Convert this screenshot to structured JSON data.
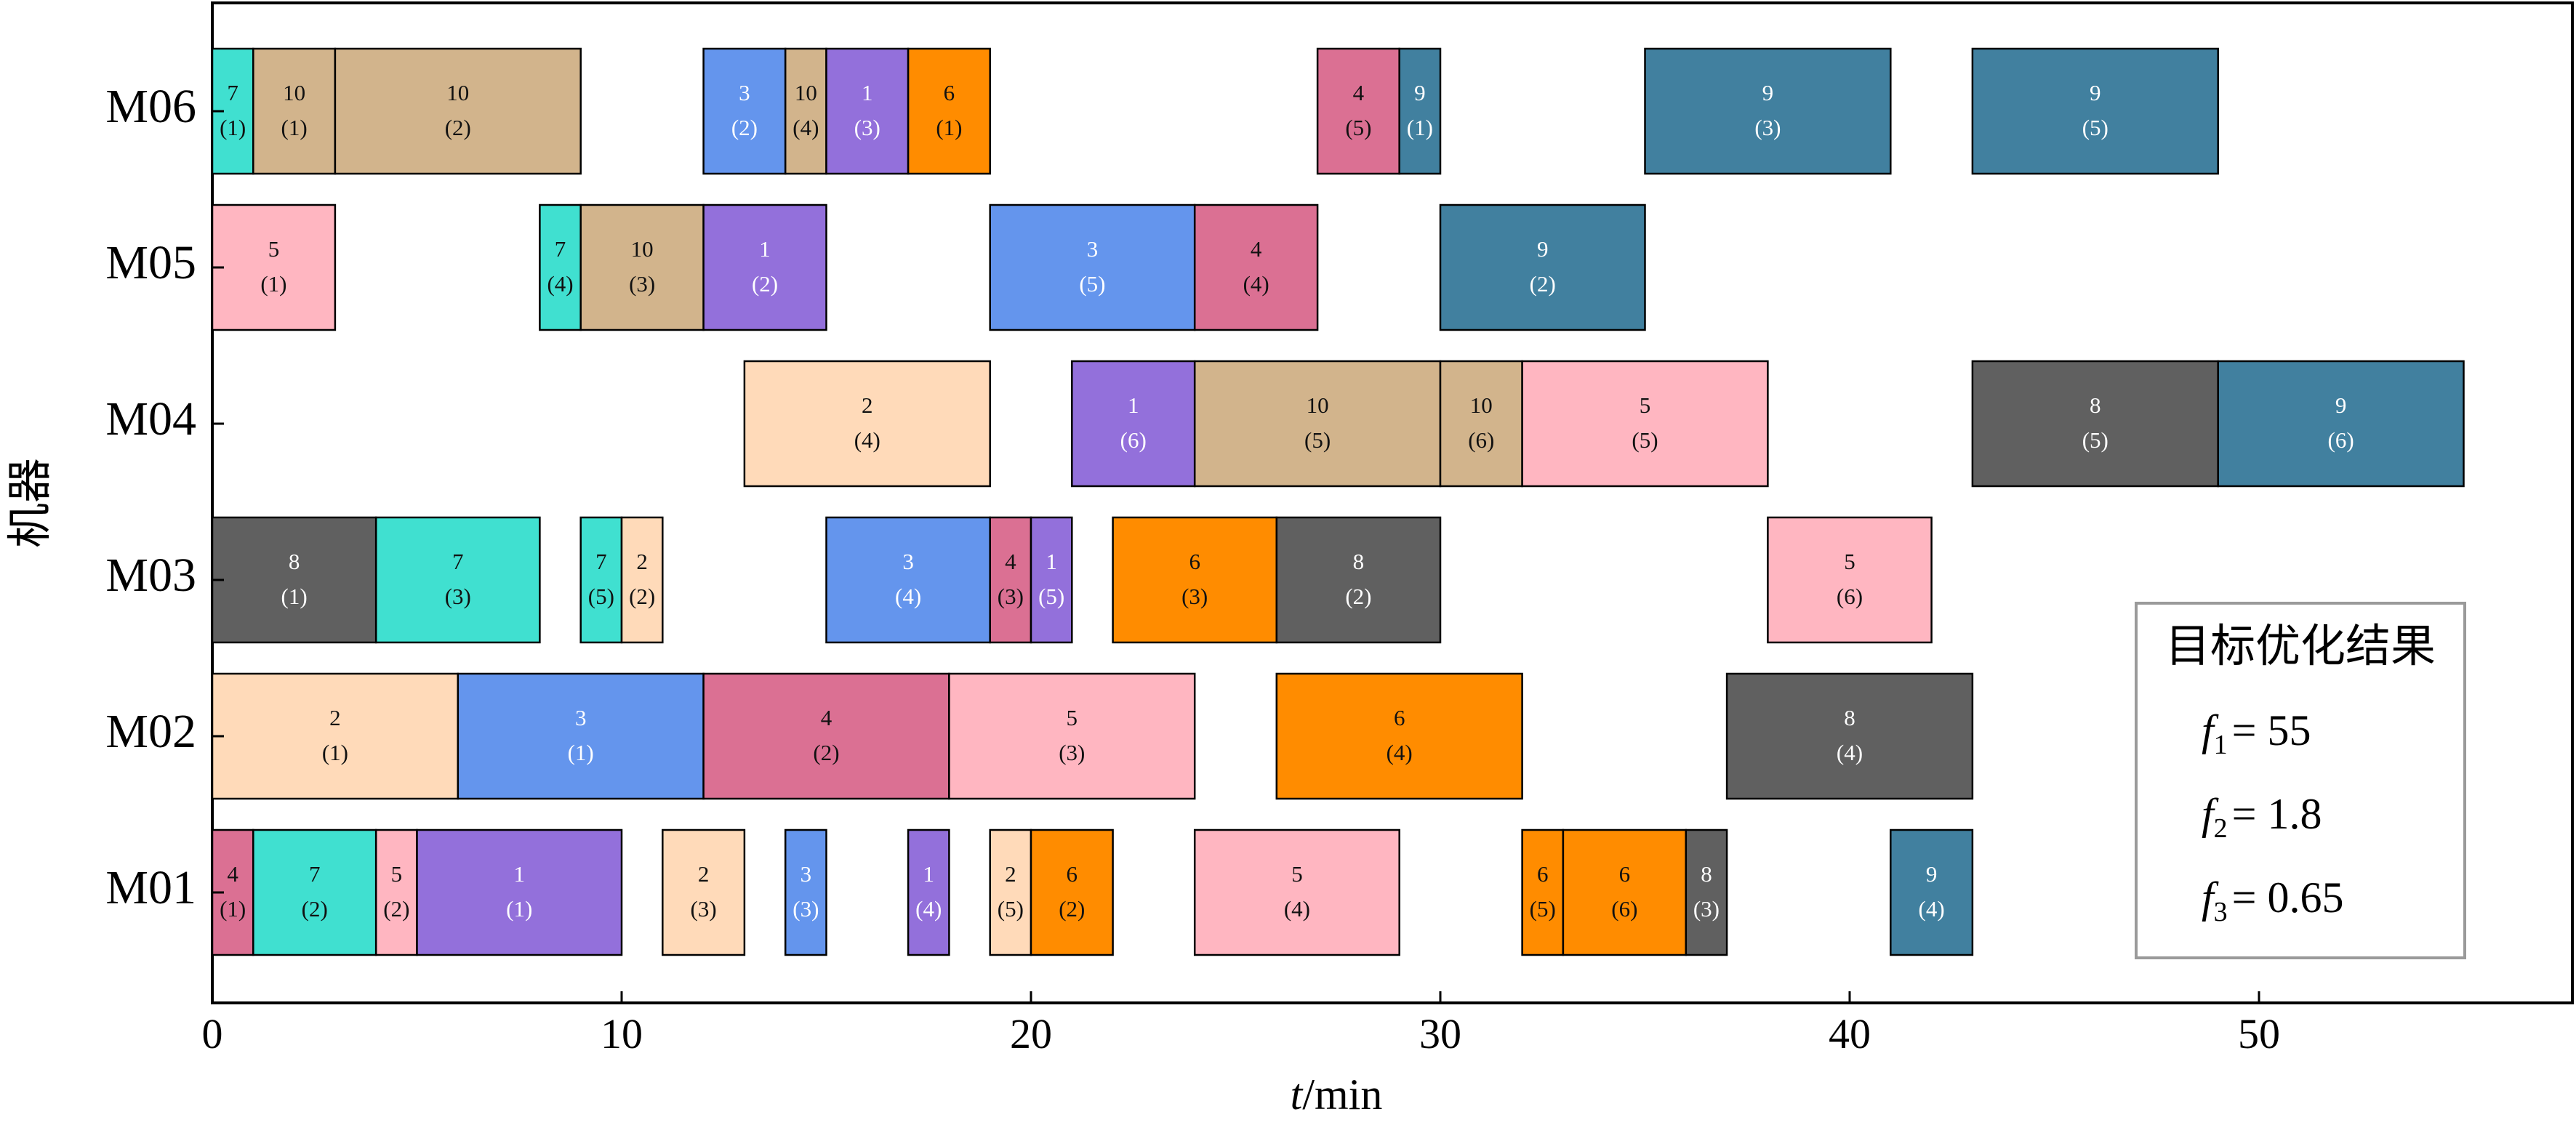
{
  "chart_data": {
    "type": "gantt",
    "title": "",
    "xlabel": {
      "italic": "t",
      "rest": "/min"
    },
    "ylabel": "机器",
    "xlim": [
      0,
      58
    ],
    "xticks": [
      0,
      10,
      20,
      30,
      40,
      50
    ],
    "machines": [
      "M01",
      "M02",
      "M03",
      "M04",
      "M05",
      "M06"
    ],
    "job_colors": {
      "1": "#9370DB",
      "2": "#FFDAB9",
      "3": "#6495ED",
      "4": "#DB7093",
      "5": "#FFB6C1",
      "6": "#FF8C00",
      "7": "#40E0D0",
      "8": "#606060",
      "9": "#41809F",
      "10": "#D2B48C"
    },
    "tasks": [
      {
        "machine": "M01",
        "job": "4",
        "op": "(1)",
        "start": 0,
        "end": 1
      },
      {
        "machine": "M01",
        "job": "7",
        "op": "(2)",
        "start": 1,
        "end": 4
      },
      {
        "machine": "M01",
        "job": "5",
        "op": "(2)",
        "start": 4,
        "end": 5
      },
      {
        "machine": "M01",
        "job": "1",
        "op": "(1)",
        "start": 5,
        "end": 10
      },
      {
        "machine": "M01",
        "job": "2",
        "op": "(3)",
        "start": 11,
        "end": 13
      },
      {
        "machine": "M01",
        "job": "3",
        "op": "(3)",
        "start": 14,
        "end": 15
      },
      {
        "machine": "M01",
        "job": "1",
        "op": "(4)",
        "start": 17,
        "end": 18
      },
      {
        "machine": "M01",
        "job": "2",
        "op": "(5)",
        "start": 19,
        "end": 20
      },
      {
        "machine": "M01",
        "job": "6",
        "op": "(2)",
        "start": 20,
        "end": 22
      },
      {
        "machine": "M01",
        "job": "5",
        "op": "(4)",
        "start": 24,
        "end": 29
      },
      {
        "machine": "M01",
        "job": "6",
        "op": "(5)",
        "start": 32,
        "end": 33
      },
      {
        "machine": "M01",
        "job": "6",
        "op": "(6)",
        "start": 33,
        "end": 36
      },
      {
        "machine": "M01",
        "job": "8",
        "op": "(3)",
        "start": 36,
        "end": 37
      },
      {
        "machine": "M01",
        "job": "9",
        "op": "(4)",
        "start": 41,
        "end": 43
      },
      {
        "machine": "M02",
        "job": "2",
        "op": "(1)",
        "start": 0,
        "end": 6
      },
      {
        "machine": "M02",
        "job": "3",
        "op": "(1)",
        "start": 6,
        "end": 12
      },
      {
        "machine": "M02",
        "job": "4",
        "op": "(2)",
        "start": 12,
        "end": 18
      },
      {
        "machine": "M02",
        "job": "5",
        "op": "(3)",
        "start": 18,
        "end": 24
      },
      {
        "machine": "M02",
        "job": "6",
        "op": "(4)",
        "start": 26,
        "end": 32
      },
      {
        "machine": "M02",
        "job": "8",
        "op": "(4)",
        "start": 37,
        "end": 43
      },
      {
        "machine": "M03",
        "job": "8",
        "op": "(1)",
        "start": 0,
        "end": 4
      },
      {
        "machine": "M03",
        "job": "7",
        "op": "(3)",
        "start": 4,
        "end": 8
      },
      {
        "machine": "M03",
        "job": "7",
        "op": "(5)",
        "start": 9,
        "end": 10
      },
      {
        "machine": "M03",
        "job": "2",
        "op": "(2)",
        "start": 10,
        "end": 11
      },
      {
        "machine": "M03",
        "job": "3",
        "op": "(4)",
        "start": 15,
        "end": 19
      },
      {
        "machine": "M03",
        "job": "4",
        "op": "(3)",
        "start": 19,
        "end": 20
      },
      {
        "machine": "M03",
        "job": "1",
        "op": "(5)",
        "start": 20,
        "end": 21
      },
      {
        "machine": "M03",
        "job": "6",
        "op": "(3)",
        "start": 22,
        "end": 26
      },
      {
        "machine": "M03",
        "job": "8",
        "op": "(2)",
        "start": 26,
        "end": 30
      },
      {
        "machine": "M03",
        "job": "5",
        "op": "(6)",
        "start": 38,
        "end": 42
      },
      {
        "machine": "M04",
        "job": "2",
        "op": "(4)",
        "start": 13,
        "end": 19
      },
      {
        "machine": "M04",
        "job": "1",
        "op": "(6)",
        "start": 21,
        "end": 24
      },
      {
        "machine": "M04",
        "job": "10",
        "op": "(5)",
        "start": 24,
        "end": 30
      },
      {
        "machine": "M04",
        "job": "10",
        "op": "(6)",
        "start": 30,
        "end": 32
      },
      {
        "machine": "M04",
        "job": "5",
        "op": "(5)",
        "start": 32,
        "end": 38
      },
      {
        "machine": "M04",
        "job": "8",
        "op": "(5)",
        "start": 43,
        "end": 49
      },
      {
        "machine": "M04",
        "job": "9",
        "op": "(6)",
        "start": 49,
        "end": 55
      },
      {
        "machine": "M05",
        "job": "5",
        "op": "(1)",
        "start": 0,
        "end": 3
      },
      {
        "machine": "M05",
        "job": "7",
        "op": "(4)",
        "start": 8,
        "end": 9
      },
      {
        "machine": "M05",
        "job": "10",
        "op": "(3)",
        "start": 9,
        "end": 12
      },
      {
        "machine": "M05",
        "job": "1",
        "op": "(2)",
        "start": 12,
        "end": 15
      },
      {
        "machine": "M05",
        "job": "3",
        "op": "(5)",
        "start": 19,
        "end": 24
      },
      {
        "machine": "M05",
        "job": "4",
        "op": "(4)",
        "start": 24,
        "end": 27
      },
      {
        "machine": "M05",
        "job": "9",
        "op": "(2)",
        "start": 30,
        "end": 35
      },
      {
        "machine": "M06",
        "job": "7",
        "op": "(1)",
        "start": 0,
        "end": 1
      },
      {
        "machine": "M06",
        "job": "10",
        "op": "(1)",
        "start": 1,
        "end": 3
      },
      {
        "machine": "M06",
        "job": "10",
        "op": "(2)",
        "start": 3,
        "end": 9
      },
      {
        "machine": "M06",
        "job": "3",
        "op": "(2)",
        "start": 12,
        "end": 14
      },
      {
        "machine": "M06",
        "job": "10",
        "op": "(4)",
        "start": 14,
        "end": 15
      },
      {
        "machine": "M06",
        "job": "1",
        "op": "(3)",
        "start": 15,
        "end": 17
      },
      {
        "machine": "M06",
        "job": "6",
        "op": "(1)",
        "start": 17,
        "end": 19
      },
      {
        "machine": "M06",
        "job": "4",
        "op": "(5)",
        "start": 27,
        "end": 29
      },
      {
        "machine": "M06",
        "job": "9",
        "op": "(1)",
        "start": 29,
        "end": 30
      },
      {
        "machine": "M06",
        "job": "9",
        "op": "(3)",
        "start": 35,
        "end": 41
      },
      {
        "machine": "M06",
        "job": "9",
        "op": "(5)",
        "start": 43,
        "end": 49
      }
    ],
    "result_box": {
      "title": "目标优化结果",
      "objectives": [
        {
          "symbol": "f",
          "sub": "1",
          "value": "= 55"
        },
        {
          "symbol": "f",
          "sub": "2",
          "value": "= 1.8"
        },
        {
          "symbol": "f",
          "sub": "3",
          "value": "= 0.65"
        }
      ]
    }
  }
}
